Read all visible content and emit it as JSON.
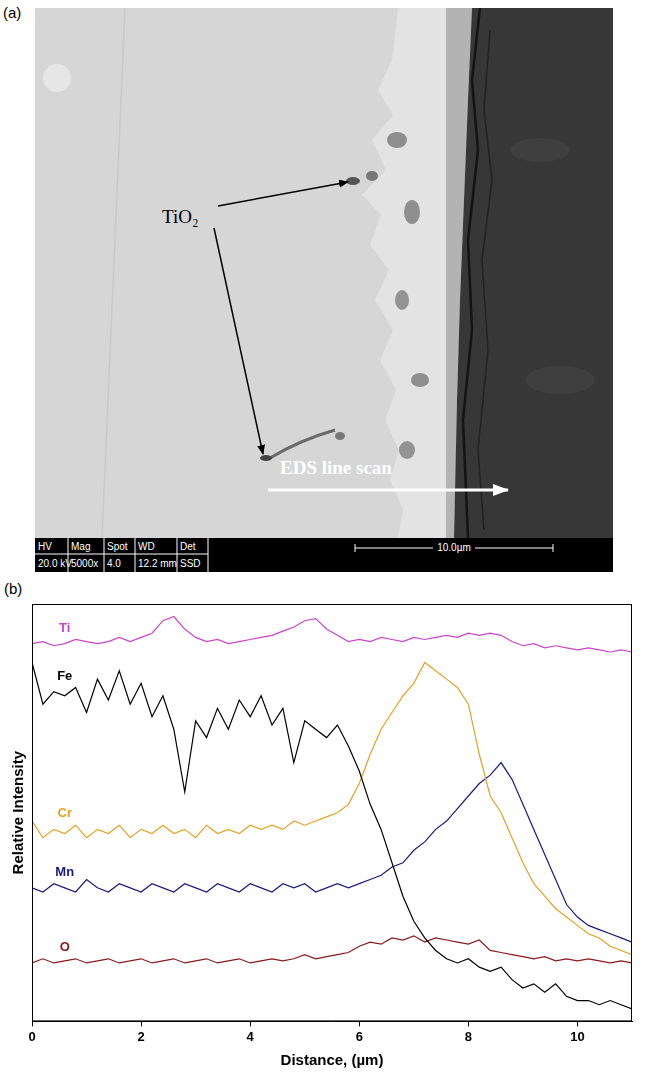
{
  "image_panel": {
    "panel_label": "(a)",
    "annotations": {
      "phase": "TiO₂",
      "scan": "EDS line scan"
    },
    "info_bar": {
      "headers": [
        "HV",
        "Mag",
        "Spot",
        "WD",
        "Det"
      ],
      "values": [
        "20.0 kV",
        "5000x",
        "4.0",
        "12.2 mm",
        "SSD"
      ]
    },
    "scale_bar": "10.0µm"
  },
  "chart_data": {
    "panel_label": "(b)",
    "type": "line",
    "x_label": "Distance, (µm)",
    "y_label": "Relative Intensity",
    "x": [
      0,
      0.2,
      0.4,
      0.6,
      0.8,
      1.0,
      1.2,
      1.4,
      1.6,
      1.8,
      2.0,
      2.2,
      2.4,
      2.6,
      2.8,
      3.0,
      3.2,
      3.4,
      3.6,
      3.8,
      4.0,
      4.2,
      4.4,
      4.6,
      4.8,
      5.0,
      5.2,
      5.4,
      5.6,
      5.8,
      6.0,
      6.2,
      6.4,
      6.6,
      6.8,
      7.0,
      7.2,
      7.4,
      7.6,
      7.8,
      8.0,
      8.2,
      8.4,
      8.6,
      8.8,
      9.0,
      9.2,
      9.4,
      9.6,
      9.8,
      10.0,
      10.2,
      10.4,
      10.6,
      10.8,
      11.0
    ],
    "xlim": [
      0,
      11
    ],
    "xticks": [
      0,
      2,
      4,
      6,
      8,
      10
    ],
    "ylim": [
      0,
      100
    ],
    "tick_labels": "x",
    "grid": false,
    "series": [
      {
        "name": "Ti",
        "color": "#cc44cc",
        "values": [
          90.5,
          91,
          90,
          90.5,
          91.5,
          91,
          90.5,
          91,
          92,
          91,
          92,
          93,
          96,
          97,
          94,
          92,
          91,
          91.5,
          90.5,
          91,
          91.5,
          92,
          92.5,
          93.5,
          94.5,
          96,
          96.5,
          94,
          92.5,
          91,
          91.5,
          91,
          92,
          91.5,
          91,
          92,
          91.5,
          92,
          92.5,
          92,
          93,
          92.5,
          93,
          92.5,
          91,
          90,
          90.5,
          89.5,
          90,
          89.5,
          89,
          89.5,
          89,
          88.5,
          89,
          88.5
        ]
      },
      {
        "name": "Fe",
        "color": "#000000",
        "values": [
          86,
          76,
          79,
          78,
          80,
          74,
          82,
          77,
          84,
          76,
          81,
          73,
          78,
          70,
          55,
          72,
          68,
          75,
          70,
          77,
          73,
          78,
          71,
          75,
          62,
          72,
          70,
          68,
          71,
          66,
          60,
          52,
          46,
          38,
          30,
          24,
          20,
          17,
          15,
          14,
          15,
          13,
          12,
          13,
          10,
          8,
          9,
          7,
          9,
          6,
          5,
          5,
          4,
          5,
          4,
          3
        ]
      },
      {
        "name": "Cr",
        "color": "#e8a020",
        "values": [
          48,
          44,
          46,
          45,
          47,
          44,
          46,
          45,
          47,
          44,
          46,
          45,
          47,
          45,
          46,
          44,
          47,
          45,
          46,
          45,
          47,
          46,
          47,
          46,
          48,
          47,
          48,
          49,
          50,
          52,
          57,
          64,
          70,
          74,
          78,
          81,
          86,
          84,
          82,
          80,
          76,
          64,
          54,
          50,
          44,
          38,
          33,
          30,
          27,
          25,
          23,
          21,
          20,
          18,
          17,
          16
        ]
      },
      {
        "name": "Mn",
        "color": "#1a1a80",
        "values": [
          32,
          31,
          33,
          32,
          31,
          34,
          32,
          31,
          33,
          32,
          31,
          33,
          32,
          31,
          33,
          32,
          31,
          33,
          32,
          31,
          33,
          32,
          31,
          33,
          32,
          33,
          31,
          32,
          33,
          32,
          33,
          34,
          35,
          37,
          38,
          41,
          43,
          46,
          48,
          51,
          54,
          57,
          59,
          62,
          58,
          52,
          46,
          40,
          34,
          28,
          25,
          23,
          22,
          21,
          20,
          19
        ]
      },
      {
        "name": "O",
        "color": "#8b1a1a",
        "values": [
          14,
          15,
          14,
          14.5,
          15,
          14,
          14.5,
          15,
          14,
          14.5,
          15,
          14,
          14.5,
          15,
          14,
          14.5,
          15,
          14,
          14.5,
          15,
          14,
          14.5,
          15,
          14.5,
          15,
          16,
          15,
          15.5,
          16,
          16.5,
          18,
          19,
          18.5,
          20,
          19.5,
          20.5,
          19,
          20,
          19.5,
          19,
          18.5,
          19.5,
          17,
          16.5,
          16,
          15.5,
          15,
          15.5,
          14.5,
          15,
          14.5,
          15,
          14.5,
          14,
          14.5,
          14
        ]
      }
    ]
  }
}
